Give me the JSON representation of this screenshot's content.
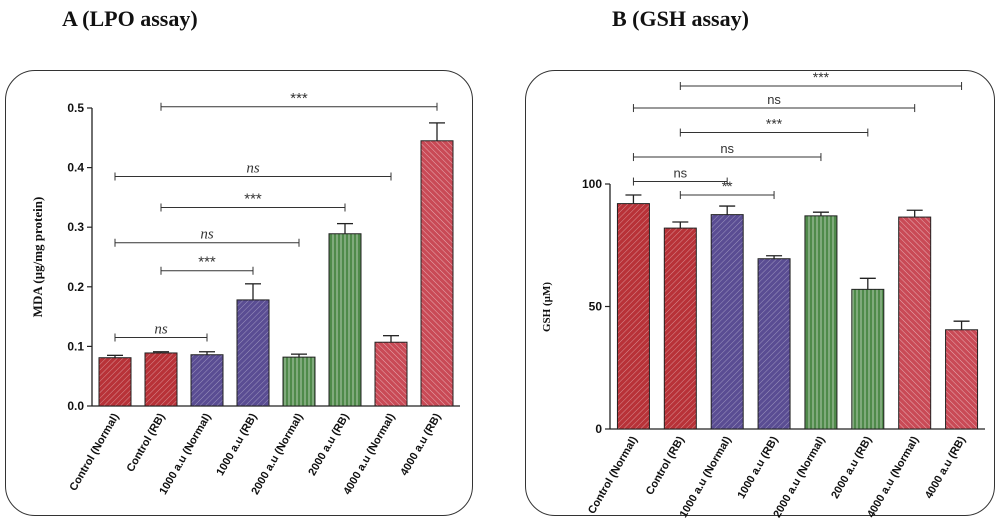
{
  "colors": {
    "red": "#b83238",
    "purple": "#5a4d93",
    "green": "#4f8a4a",
    "pink": "#c94a56"
  },
  "panel_titles": {
    "a": "A   (LPO assay)",
    "b": "B (GSH assay)"
  },
  "chart_data": [
    {
      "type": "bar",
      "title": "A   (LPO assay)",
      "xlabel": "",
      "ylabel": "MDA (µg/mg protein)",
      "ylim": [
        0,
        0.5
      ],
      "yticks": [
        "0.0",
        "0.1",
        "0.2",
        "0.3",
        "0.4",
        "0.5"
      ],
      "categories": [
        "Control (Normal)",
        "Control (RB)",
        "1000 a.u (Normal)",
        "1000 a.u (RB)",
        "2000 a.u (Normal)",
        "2000 a.u (RB)",
        "4000 a.u (Normal)",
        "4000 a.u (RB)"
      ],
      "values": [
        0.081,
        0.089,
        0.086,
        0.178,
        0.082,
        0.289,
        0.107,
        0.445
      ],
      "errors": [
        0.004,
        0.002,
        0.005,
        0.027,
        0.005,
        0.017,
        0.011,
        0.03
      ],
      "bar_colors": [
        "red",
        "red",
        "purple",
        "purple",
        "green",
        "green",
        "pink",
        "pink"
      ],
      "significance": [
        {
          "from": 0,
          "to": 2,
          "y": 0.115,
          "label": "ns"
        },
        {
          "from": 1,
          "to": 3,
          "y": 0.227,
          "label": "***"
        },
        {
          "from": 0,
          "to": 4,
          "y": 0.274,
          "label": "ns"
        },
        {
          "from": 1,
          "to": 5,
          "y": 0.333,
          "label": "***"
        },
        {
          "from": 0,
          "to": 6,
          "y": 0.385,
          "label": "ns"
        },
        {
          "from": 1,
          "to": 7,
          "y": 0.502,
          "label": "***"
        }
      ]
    },
    {
      "type": "bar",
      "title": "B (GSH assay)",
      "xlabel": "",
      "ylabel": "GSH (µM)",
      "ylim": [
        0,
        100
      ],
      "yticks": [
        "0",
        "50",
        "100"
      ],
      "categories": [
        "Control (Normal)",
        "Control (RB)",
        "1000 a.u (Normal)",
        "1000 a.u (RB)",
        "2000 a.u (Normal)",
        "2000 a.u (RB)",
        "4000 a.u (Normal)",
        "4000 a.u (RB)"
      ],
      "values": [
        92,
        82,
        87.5,
        69.5,
        87,
        57,
        86.5,
        40.5
      ],
      "errors": [
        3.5,
        2.5,
        3.5,
        1.2,
        1.5,
        4.5,
        2.8,
        3.5
      ],
      "bar_colors": [
        "red",
        "red",
        "purple",
        "purple",
        "green",
        "green",
        "pink",
        "pink"
      ],
      "significance": [
        {
          "from": 1,
          "to": 3,
          "y": 95.5,
          "label": "**"
        },
        {
          "from": 0,
          "to": 2,
          "y": 101,
          "label": "ns"
        },
        {
          "from": 0,
          "to": 4,
          "y": 111,
          "label": "ns"
        },
        {
          "from": 1,
          "to": 5,
          "y": 121,
          "label": "***"
        },
        {
          "from": 0,
          "to": 6,
          "y": 131,
          "label": "ns"
        },
        {
          "from": 1,
          "to": 7,
          "y": 140,
          "label": "***"
        }
      ]
    }
  ]
}
